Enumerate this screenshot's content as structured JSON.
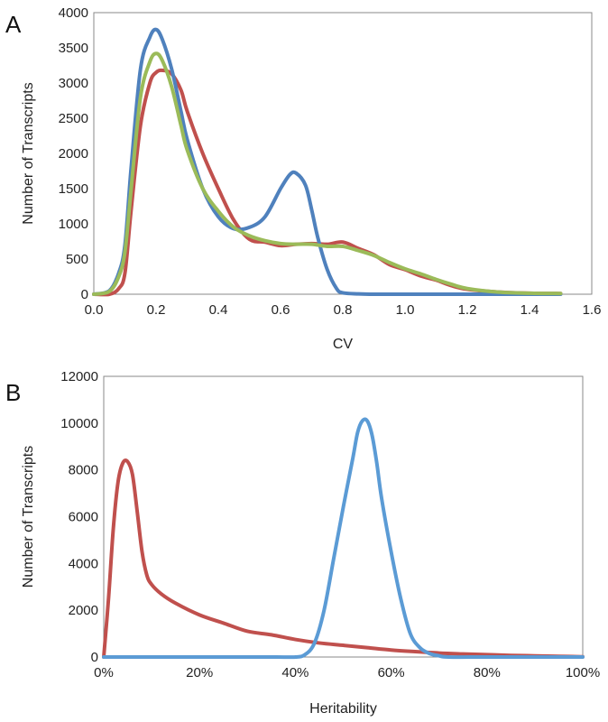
{
  "chart_data": [
    {
      "panel_label": "A",
      "type": "line",
      "xlabel": "CV",
      "ylabel": "Number of Transcripts",
      "xlim": [
        0,
        1.6
      ],
      "ylim": [
        0,
        4000
      ],
      "xticks": [
        0,
        0.2,
        0.4,
        0.6,
        0.8,
        1.0,
        1.2,
        1.4,
        1.6
      ],
      "xtick_labels": [
        "0.0",
        "0.2",
        "0.4",
        "0.6",
        "0.8",
        "1.0",
        "1.2",
        "1.4",
        "1.6"
      ],
      "yticks": [
        0,
        500,
        1000,
        1500,
        2000,
        2500,
        3000,
        3500,
        4000
      ],
      "ytick_labels": [
        "0",
        "500",
        "1000",
        "1500",
        "2000",
        "2500",
        "3000",
        "3500",
        "4000"
      ],
      "grid": false,
      "series": [
        {
          "color": "#c0504d",
          "x": [
            0,
            0.05,
            0.08,
            0.1,
            0.12,
            0.15,
            0.18,
            0.2,
            0.22,
            0.25,
            0.28,
            0.3,
            0.35,
            0.4,
            0.45,
            0.5,
            0.55,
            0.6,
            0.65,
            0.7,
            0.75,
            0.8,
            0.85,
            0.9,
            0.95,
            1.0,
            1.05,
            1.1,
            1.15,
            1.2,
            1.3,
            1.4,
            1.5
          ],
          "y": [
            0,
            0,
            80,
            300,
            1200,
            2400,
            3000,
            3150,
            3180,
            3130,
            2900,
            2600,
            2000,
            1500,
            1050,
            780,
            740,
            690,
            710,
            720,
            710,
            740,
            650,
            560,
            420,
            350,
            260,
            200,
            120,
            70,
            30,
            15,
            10
          ]
        },
        {
          "color": "#4f81bd",
          "x": [
            0,
            0.05,
            0.08,
            0.1,
            0.12,
            0.15,
            0.18,
            0.2,
            0.22,
            0.25,
            0.28,
            0.3,
            0.35,
            0.4,
            0.45,
            0.5,
            0.55,
            0.6,
            0.63,
            0.65,
            0.68,
            0.7,
            0.72,
            0.75,
            0.78,
            0.8,
            0.85,
            0.9,
            1.0,
            1.2,
            1.4,
            1.5
          ],
          "y": [
            0,
            50,
            300,
            700,
            1800,
            3200,
            3650,
            3760,
            3620,
            3200,
            2600,
            2200,
            1500,
            1100,
            930,
            950,
            1100,
            1500,
            1700,
            1720,
            1550,
            1200,
            800,
            350,
            80,
            20,
            5,
            0,
            0,
            0,
            0,
            0
          ]
        },
        {
          "color": "#9bbb59",
          "x": [
            0,
            0.05,
            0.08,
            0.1,
            0.12,
            0.15,
            0.18,
            0.2,
            0.22,
            0.25,
            0.28,
            0.3,
            0.35,
            0.4,
            0.45,
            0.5,
            0.55,
            0.6,
            0.65,
            0.7,
            0.75,
            0.8,
            0.85,
            0.9,
            0.95,
            1.0,
            1.05,
            1.1,
            1.15,
            1.2,
            1.3,
            1.4,
            1.5
          ],
          "y": [
            0,
            40,
            250,
            600,
            1500,
            2800,
            3300,
            3420,
            3320,
            2950,
            2400,
            2050,
            1500,
            1180,
            950,
            830,
            760,
            720,
            710,
            710,
            680,
            680,
            620,
            550,
            450,
            360,
            290,
            210,
            140,
            80,
            30,
            15,
            10
          ]
        }
      ]
    },
    {
      "panel_label": "B",
      "type": "line",
      "xlabel": "Heritability",
      "ylabel": "Number of Transcripts",
      "xlim": [
        0,
        1
      ],
      "ylim": [
        0,
        12000
      ],
      "xticks": [
        0,
        0.2,
        0.4,
        0.6,
        0.8,
        1.0
      ],
      "xtick_labels": [
        "0%",
        "20%",
        "40%",
        "60%",
        "80%",
        "100%"
      ],
      "yticks": [
        0,
        2000,
        4000,
        6000,
        8000,
        10000,
        12000
      ],
      "ytick_labels": [
        "0",
        "2000",
        "4000",
        "6000",
        "8000",
        "10000",
        "12000"
      ],
      "grid": false,
      "series": [
        {
          "color": "#c0504d",
          "x": [
            0,
            0.01,
            0.02,
            0.03,
            0.04,
            0.05,
            0.06,
            0.07,
            0.08,
            0.09,
            0.1,
            0.12,
            0.15,
            0.2,
            0.25,
            0.3,
            0.35,
            0.4,
            0.45,
            0.5,
            0.55,
            0.6,
            0.65,
            0.7,
            0.75,
            0.8,
            0.85,
            0.9,
            0.95,
            1.0
          ],
          "y": [
            0,
            2500,
            5500,
            7500,
            8300,
            8350,
            7800,
            6200,
            4500,
            3500,
            3100,
            2700,
            2300,
            1800,
            1450,
            1100,
            950,
            750,
            600,
            500,
            400,
            300,
            230,
            170,
            130,
            100,
            70,
            50,
            30,
            10
          ]
        },
        {
          "color": "#5b9bd5",
          "x": [
            0,
            0.1,
            0.2,
            0.3,
            0.36,
            0.4,
            0.42,
            0.44,
            0.46,
            0.48,
            0.5,
            0.52,
            0.53,
            0.54,
            0.55,
            0.56,
            0.57,
            0.58,
            0.6,
            0.62,
            0.64,
            0.66,
            0.68,
            0.7,
            0.72,
            0.8,
            0.9,
            1.0
          ],
          "y": [
            0,
            0,
            0,
            0,
            0,
            0,
            100,
            600,
            2000,
            4200,
            6400,
            8500,
            9600,
            10100,
            10100,
            9500,
            8300,
            6800,
            4500,
            2500,
            1000,
            400,
            150,
            50,
            0,
            0,
            0,
            0
          ]
        }
      ]
    }
  ]
}
